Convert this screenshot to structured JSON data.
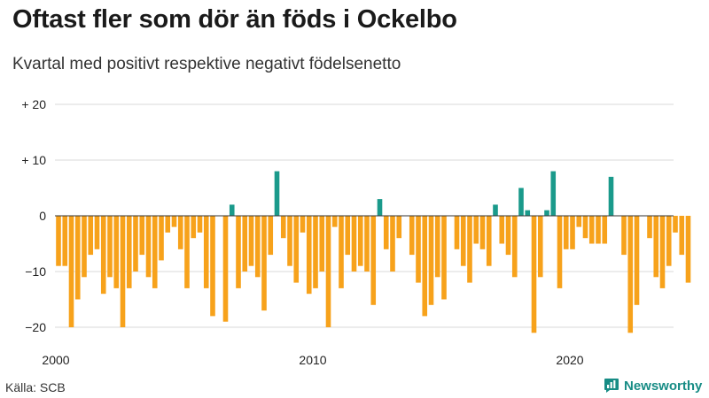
{
  "title": "Oftast fler som dör än föds i Ockelbo",
  "subtitle": "Kvartal med positivt respektive negativt födelsenetto",
  "source": "Källa: SCB",
  "brand": {
    "name": "Newsworthy",
    "icon": "newsworthy-logo-icon"
  },
  "colors": {
    "positive": "#1a9a8b",
    "negative": "#f7a21b",
    "grid": "#d9d9d9",
    "zero": "#333333"
  },
  "chart_data": {
    "type": "bar",
    "title": "Oftast fler som dör än föds i Ockelbo",
    "subtitle": "Kvartal med positivt respektive negativt födelsenetto",
    "xlabel": "",
    "ylabel": "",
    "ylim": [
      -20,
      20
    ],
    "yticks": [
      20,
      10,
      0,
      -10,
      -20
    ],
    "ytick_labels": [
      "+ 20",
      "+ 10",
      "0",
      "−10",
      "−20"
    ],
    "x_start": 2000,
    "periods_per_year": 4,
    "xticks": [
      2000,
      2010,
      2020
    ],
    "xtick_labels": [
      "2000",
      "2010",
      "2020"
    ],
    "values": [
      -9,
      -9,
      -20,
      -15,
      -11,
      -7,
      -6,
      -14,
      -11,
      -13,
      -20,
      -13,
      -10,
      -7,
      -11,
      -13,
      -8,
      -3,
      -2,
      -6,
      -13,
      -4,
      -3,
      -13,
      -18,
      0,
      -19,
      2,
      -13,
      -10,
      -9,
      -11,
      -17,
      -7,
      8,
      -4,
      -9,
      -12,
      -3,
      -14,
      -13,
      -10,
      -20,
      -2,
      -13,
      -7,
      -10,
      -9,
      -10,
      -16,
      3,
      -6,
      -10,
      -4,
      0,
      -7,
      -12,
      -18,
      -16,
      -11,
      -15,
      0,
      -6,
      -9,
      -12,
      -5,
      -6,
      -9,
      2,
      -5,
      -7,
      -11,
      5,
      1,
      -21,
      -11,
      1,
      8,
      -13,
      -6,
      -6,
      -2,
      -4,
      -5,
      -5,
      -5,
      7,
      0,
      -7,
      -21,
      -16,
      0,
      -4,
      -11,
      -13,
      -9,
      -3,
      -7,
      -12
    ]
  }
}
